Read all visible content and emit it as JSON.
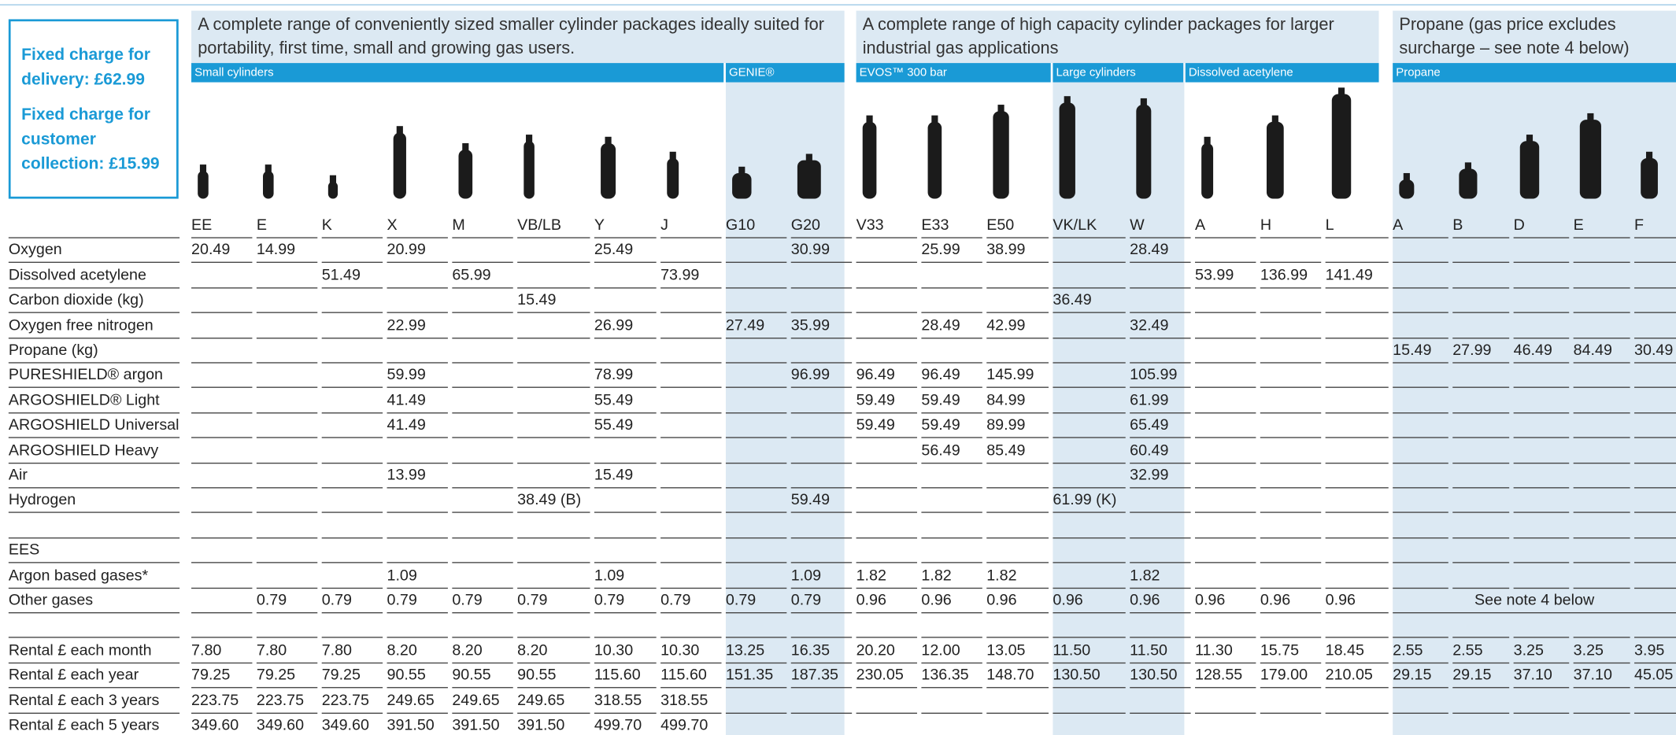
{
  "info_box": {
    "delivery": "Fixed charge for delivery: £62.99",
    "collection": "Fixed charge for customer collection: £15.99"
  },
  "group_headers": [
    "A complete range of conveniently sized smaller cylinder packages ideally suited for portability, first time, small and growing gas users.",
    "A complete range of high capacity cylinder packages for larger industrial gas applications",
    "Propane (gas price excludes surcharge – see note 4 below)"
  ],
  "sections": [
    "Small cylinders",
    "GENIE®",
    "EVOS™ 300 bar",
    "Large cylinders",
    "Dissolved acetylene",
    "Propane"
  ],
  "table": {
    "columns": [
      "EE",
      "E",
      "K",
      "X",
      "M",
      "VB/LB",
      "Y",
      "J",
      "G10",
      "G20",
      "V33",
      "E33",
      "E50",
      "VK/LK",
      "W",
      "A",
      "H",
      "L",
      "A",
      "B",
      "D",
      "E",
      "F"
    ],
    "rows": [
      {
        "label": "Oxygen",
        "cells": [
          "20.49",
          "14.99",
          null,
          "20.99",
          null,
          null,
          "25.49",
          null,
          null,
          "30.99",
          null,
          "25.99",
          "38.99",
          null,
          "28.49",
          null,
          null,
          null,
          null,
          null,
          null,
          null,
          null
        ]
      },
      {
        "label": "Dissolved acetylene",
        "cells": [
          null,
          null,
          "51.49",
          null,
          "65.99",
          null,
          null,
          "73.99",
          null,
          null,
          null,
          null,
          null,
          null,
          null,
          "53.99",
          "136.99",
          "141.49",
          null,
          null,
          null,
          null,
          null
        ]
      },
      {
        "label": "Carbon dioxide (kg)",
        "cells": [
          null,
          null,
          null,
          null,
          null,
          "15.49",
          null,
          null,
          null,
          null,
          null,
          null,
          null,
          "36.49",
          null,
          null,
          null,
          null,
          null,
          null,
          null,
          null,
          null
        ]
      },
      {
        "label": "Oxygen free nitrogen",
        "cells": [
          null,
          null,
          null,
          "22.99",
          null,
          null,
          "26.99",
          null,
          "27.49",
          "35.99",
          null,
          "28.49",
          "42.99",
          null,
          "32.49",
          null,
          null,
          null,
          null,
          null,
          null,
          null,
          null
        ]
      },
      {
        "label": "Propane (kg)",
        "cells": [
          null,
          null,
          null,
          null,
          null,
          null,
          null,
          null,
          null,
          null,
          null,
          null,
          null,
          null,
          null,
          null,
          null,
          null,
          "15.49",
          "27.99",
          "46.49",
          "84.49",
          "30.49"
        ]
      },
      {
        "label": "PURESHIELD® argon",
        "cells": [
          null,
          null,
          null,
          "59.99",
          null,
          null,
          "78.99",
          null,
          null,
          "96.99",
          "96.49",
          "96.49",
          "145.99",
          null,
          "105.99",
          null,
          null,
          null,
          null,
          null,
          null,
          null,
          null
        ]
      },
      {
        "label": "ARGOSHIELD® Light",
        "cells": [
          null,
          null,
          null,
          "41.49",
          null,
          null,
          "55.49",
          null,
          null,
          null,
          "59.49",
          "59.49",
          "84.99",
          null,
          "61.99",
          null,
          null,
          null,
          null,
          null,
          null,
          null,
          null
        ]
      },
      {
        "label": "ARGOSHIELD Universal",
        "cells": [
          null,
          null,
          null,
          "41.49",
          null,
          null,
          "55.49",
          null,
          null,
          null,
          "59.49",
          "59.49",
          "89.99",
          null,
          "65.49",
          null,
          null,
          null,
          null,
          null,
          null,
          null,
          null
        ]
      },
      {
        "label": "ARGOSHIELD Heavy",
        "cells": [
          null,
          null,
          null,
          null,
          null,
          null,
          null,
          null,
          null,
          null,
          null,
          "56.49",
          "85.49",
          null,
          "60.49",
          null,
          null,
          null,
          null,
          null,
          null,
          null,
          null
        ]
      },
      {
        "label": "Air",
        "cells": [
          null,
          null,
          null,
          "13.99",
          null,
          null,
          "15.49",
          null,
          null,
          null,
          null,
          null,
          null,
          null,
          "32.99",
          null,
          null,
          null,
          null,
          null,
          null,
          null,
          null
        ]
      },
      {
        "label": "Hydrogen",
        "cells": [
          null,
          null,
          null,
          null,
          null,
          "38.49 (B)",
          null,
          null,
          null,
          "59.49",
          null,
          null,
          null,
          "61.99 (K)",
          null,
          null,
          null,
          null,
          null,
          null,
          null,
          null,
          null
        ]
      },
      {
        "label": "EES"
      },
      {
        "label": "Argon based gases*",
        "cells": [
          null,
          null,
          null,
          "1.09",
          null,
          null,
          "1.09",
          null,
          null,
          "1.09",
          "1.82",
          "1.82",
          "1.82",
          null,
          "1.82",
          null,
          null,
          null,
          null,
          null,
          null,
          null,
          null
        ]
      },
      {
        "label": "Other gases",
        "cells": [
          null,
          "0.79",
          "0.79",
          "0.79",
          "0.79",
          "0.79",
          "0.79",
          "0.79",
          "0.79",
          "0.79",
          "0.96",
          "0.96",
          "0.96",
          "0.96",
          "0.96",
          "0.96",
          "0.96",
          "0.96"
        ],
        "note": "See note 4 below"
      },
      {
        "label": "Rental £ each month",
        "cells": [
          "7.80",
          "7.80",
          "7.80",
          "8.20",
          "8.20",
          "8.20",
          "10.30",
          "10.30",
          "13.25",
          "16.35",
          "20.20",
          "12.00",
          "13.05",
          "11.50",
          "11.50",
          "11.30",
          "15.75",
          "18.45",
          "2.55",
          "2.55",
          "3.25",
          "3.25",
          "3.95"
        ]
      },
      {
        "label": "Rental £ each year",
        "cells": [
          "79.25",
          "79.25",
          "79.25",
          "90.55",
          "90.55",
          "90.55",
          "115.60",
          "115.60",
          "151.35",
          "187.35",
          "230.05",
          "136.35",
          "148.70",
          "130.50",
          "130.50",
          "128.55",
          "179.00",
          "210.05",
          "29.15",
          "29.15",
          "37.10",
          "37.10",
          "45.05"
        ]
      },
      {
        "label": "Rental £ each 3 years",
        "cells": [
          "223.75",
          "223.75",
          "223.75",
          "249.65",
          "249.65",
          "249.65",
          "318.55",
          "318.55",
          null,
          null,
          null,
          null,
          null,
          null,
          null,
          null,
          null,
          null,
          null,
          null,
          null,
          null,
          null
        ]
      },
      {
        "label": "Rental £ each 5 years",
        "cells": [
          "349.60",
          "349.60",
          "349.60",
          "391.50",
          "391.50",
          "391.50",
          "499.70",
          "499.70",
          null,
          null,
          null,
          null,
          null,
          null,
          null,
          null,
          null,
          null,
          null,
          null,
          null,
          null,
          null
        ]
      }
    ]
  }
}
